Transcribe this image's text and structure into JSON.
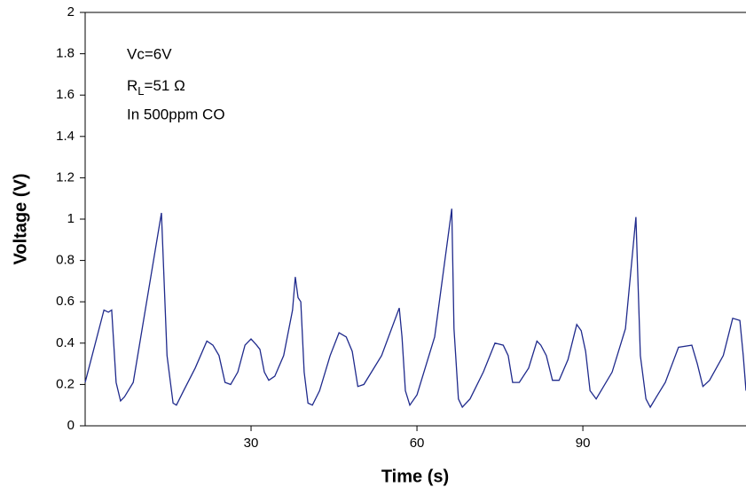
{
  "chart_data": {
    "type": "line",
    "x_label": "Time (s)",
    "y_label": "Voltage (V)",
    "annotation_lines": [
      "Vc=6V",
      [
        "R",
        "L",
        "=51 Ω"
      ],
      "In 500ppm CO"
    ],
    "color": "#1f2a8c",
    "xlim": [
      0,
      119.5
    ],
    "xticks": [
      30,
      60,
      90
    ],
    "ylim": [
      0,
      2
    ],
    "yticks": [
      0,
      0.2,
      0.4,
      0.6,
      0.8,
      1,
      1.2,
      1.4,
      1.6,
      1.8,
      2
    ],
    "x": [
      0,
      3.4,
      4.2,
      4.8,
      5.6,
      6.4,
      7.1,
      8.7,
      13.8,
      14.8,
      15.9,
      16.5,
      17.8,
      19.9,
      22,
      23.1,
      24.2,
      25.3,
      26.3,
      27.6,
      28.9,
      30,
      31,
      31.6,
      32.4,
      33.2,
      34.3,
      35.9,
      37.5,
      38,
      38.5,
      39,
      39.6,
      40.3,
      41.1,
      42.4,
      44.3,
      45.9,
      47.2,
      48.3,
      49.3,
      50.4,
      53.6,
      56.8,
      57.3,
      57.9,
      58.7,
      60,
      63.2,
      66.3,
      66.7,
      67.5,
      68.2,
      69.6,
      72,
      74.1,
      75.6,
      76.5,
      77.3,
      78.5,
      80.2,
      81.7,
      82.4,
      83.4,
      84.5,
      85.7,
      87.3,
      88.9,
      89.7,
      90.5,
      91.3,
      92.4,
      95.3,
      97.7,
      99.6,
      100.4,
      101.4,
      102.2,
      103.3,
      104.9,
      107.3,
      109.7,
      110.7,
      111.7,
      112.9,
      115.4,
      117.1,
      118.4,
      119,
      119.5
    ],
    "values": [
      0.21,
      0.56,
      0.55,
      0.56,
      0.21,
      0.12,
      0.14,
      0.21,
      1.03,
      0.34,
      0.11,
      0.1,
      0.17,
      0.28,
      0.41,
      0.39,
      0.34,
      0.21,
      0.2,
      0.26,
      0.39,
      0.42,
      0.39,
      0.37,
      0.26,
      0.22,
      0.24,
      0.34,
      0.56,
      0.72,
      0.62,
      0.6,
      0.26,
      0.11,
      0.1,
      0.17,
      0.34,
      0.45,
      0.43,
      0.36,
      0.19,
      0.2,
      0.34,
      0.57,
      0.43,
      0.17,
      0.1,
      0.15,
      0.43,
      1.05,
      0.47,
      0.13,
      0.09,
      0.13,
      0.26,
      0.4,
      0.39,
      0.34,
      0.21,
      0.21,
      0.28,
      0.41,
      0.39,
      0.34,
      0.22,
      0.22,
      0.32,
      0.49,
      0.46,
      0.36,
      0.17,
      0.13,
      0.26,
      0.47,
      1.01,
      0.34,
      0.13,
      0.09,
      0.14,
      0.21,
      0.38,
      0.39,
      0.3,
      0.19,
      0.22,
      0.34,
      0.52,
      0.51,
      0.34,
      0.17
    ]
  }
}
